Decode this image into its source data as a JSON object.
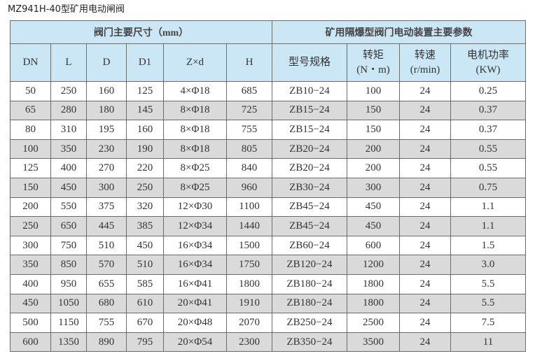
{
  "title": "MZ941H-40型矿用电动闸阀",
  "groups": [
    "阀门主要尺寸（mm）",
    "矿用隔爆型阀门电动装置主要参数"
  ],
  "columns": [
    {
      "label": "DN"
    },
    {
      "label": "L"
    },
    {
      "label": "D"
    },
    {
      "label": "D1"
    },
    {
      "label": "Z×d"
    },
    {
      "label": "H"
    },
    {
      "label": "型号规格"
    },
    {
      "label": "转矩",
      "unit": "(N・m)"
    },
    {
      "label": "转速",
      "unit": "(r/min)"
    },
    {
      "label": "电机功率",
      "unit": "(KW)"
    }
  ],
  "rows": [
    [
      "50",
      "250",
      "160",
      "125",
      "4×Φ18",
      "685",
      "ZB10−24",
      "100",
      "24",
      "0.25"
    ],
    [
      "65",
      "280",
      "180",
      "145",
      "8×Φ18",
      "725",
      "ZB15−24",
      "150",
      "24",
      "0.37"
    ],
    [
      "80",
      "310",
      "195",
      "160",
      "8×Φ18",
      "755",
      "ZB15−24",
      "150",
      "24",
      "0.37"
    ],
    [
      "100",
      "350",
      "230",
      "190",
      "8×Φ18",
      "805",
      "ZB20−24",
      "200",
      "24",
      "0.55"
    ],
    [
      "125",
      "400",
      "270",
      "220",
      "8×Φ25",
      "840",
      "ZB20−24",
      "200",
      "24",
      "0.55"
    ],
    [
      "150",
      "450",
      "300",
      "250",
      "8×Φ25",
      "960",
      "ZB30−24",
      "300",
      "24",
      "0.75"
    ],
    [
      "200",
      "550",
      "375",
      "320",
      "12×Φ30",
      "1100",
      "ZB45−24",
      "450",
      "24",
      "1.1"
    ],
    [
      "250",
      "650",
      "445",
      "385",
      "12×Φ34",
      "1440",
      "ZB45−24",
      "450",
      "24",
      "1.1"
    ],
    [
      "300",
      "750",
      "510",
      "450",
      "16×Φ34",
      "1500",
      "ZB60−24",
      "600",
      "24",
      "1.5"
    ],
    [
      "350",
      "850",
      "570",
      "510",
      "16×Φ34",
      "1750",
      "ZB120−24",
      "1200",
      "24",
      "3.0"
    ],
    [
      "400",
      "950",
      "655",
      "585",
      "16×Φ41",
      "1800",
      "ZB180−24",
      "1800",
      "24",
      "5.5"
    ],
    [
      "450",
      "1050",
      "680",
      "610",
      "20×Φ41",
      "1910",
      "ZB180−24",
      "1800",
      "24",
      "5.5"
    ],
    [
      "500",
      "1150",
      "755",
      "670",
      "20×Φ48",
      "2070",
      "ZB250−24",
      "2500",
      "24",
      "7.5"
    ],
    [
      "600",
      "1350",
      "890",
      "795",
      "20×Φ54",
      "2300",
      "ZB350−24",
      "3500",
      "24",
      "11"
    ]
  ],
  "colors": {
    "header_bg": "#cbe7f6",
    "alt_row_bg": "#dadada",
    "border": "#6b6b6b"
  }
}
